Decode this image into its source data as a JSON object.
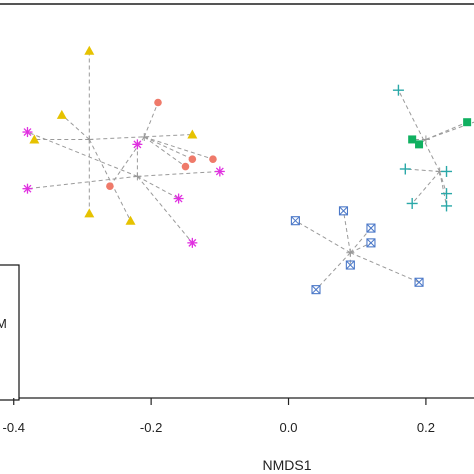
{
  "chart_data": {
    "type": "scatter",
    "xlabel": "NMDS1",
    "xlim": [
      -0.42,
      0.27
    ],
    "ylim": [
      -0.6,
      1.0
    ],
    "x_ticks": [
      -0.4,
      -0.2,
      0.0,
      0.2
    ],
    "x_tick_labels": [
      "-0.4",
      "-0.2",
      "0.0",
      "0.2"
    ],
    "legend_fragment": "M",
    "grid": false,
    "series": [
      {
        "marker": "triangle",
        "color": "#e6c200",
        "centroid": [
          -0.29,
          0.45
        ],
        "points": [
          [
            -0.29,
            0.81
          ],
          [
            -0.33,
            0.55
          ],
          [
            -0.37,
            0.45
          ],
          [
            -0.14,
            0.47
          ],
          [
            -0.29,
            0.15
          ],
          [
            -0.23,
            0.12
          ]
        ]
      },
      {
        "marker": "circle",
        "color": "#ef7a6a",
        "centroid": [
          -0.21,
          0.46
        ],
        "points": [
          [
            -0.19,
            0.6
          ],
          [
            -0.14,
            0.37
          ],
          [
            -0.15,
            0.34
          ],
          [
            -0.11,
            0.37
          ],
          [
            -0.26,
            0.26
          ]
        ]
      },
      {
        "marker": "asterisk",
        "color": "#e030e0",
        "centroid": [
          -0.22,
          0.3
        ],
        "points": [
          [
            -0.38,
            0.48
          ],
          [
            -0.22,
            0.43
          ],
          [
            -0.1,
            0.32
          ],
          [
            -0.38,
            0.25
          ],
          [
            -0.16,
            0.21
          ],
          [
            -0.14,
            0.03
          ]
        ]
      },
      {
        "marker": "square",
        "color": "#10b060",
        "centroid": [
          0.2,
          0.45
        ],
        "points": [
          [
            0.18,
            0.45
          ],
          [
            0.19,
            0.43
          ],
          [
            0.26,
            0.52
          ],
          [
            0.28,
            0.53
          ]
        ]
      },
      {
        "marker": "plus",
        "color": "#2aa8a8",
        "centroid": [
          0.22,
          0.32
        ],
        "points": [
          [
            0.16,
            0.65
          ],
          [
            0.17,
            0.33
          ],
          [
            0.23,
            0.32
          ],
          [
            0.23,
            0.23
          ],
          [
            0.23,
            0.18
          ],
          [
            0.18,
            0.19
          ]
        ]
      },
      {
        "marker": "boxx",
        "color": "#4b78c8",
        "centroid": [
          0.09,
          -0.01
        ],
        "points": [
          [
            0.01,
            0.12
          ],
          [
            0.08,
            0.16
          ],
          [
            0.12,
            0.09
          ],
          [
            0.12,
            0.03
          ],
          [
            0.09,
            -0.06
          ],
          [
            0.04,
            -0.16
          ],
          [
            0.19,
            -0.13
          ]
        ]
      }
    ]
  }
}
